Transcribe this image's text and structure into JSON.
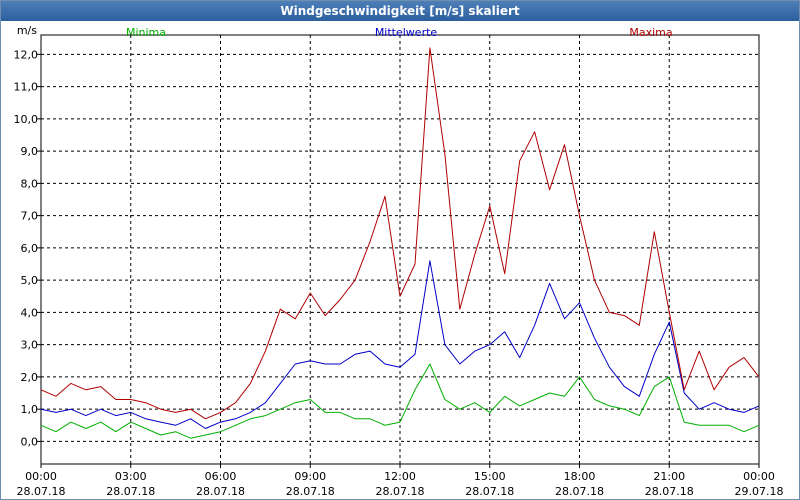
{
  "window": {
    "title": "Windgeschwindigkeit [m/s] skaliert"
  },
  "chart_data": {
    "type": "line",
    "title": "Windgeschwindigkeit [m/s] skaliert",
    "ylabel": "m/s",
    "xlabel": "",
    "ylim": [
      -0.7,
      12.6
    ],
    "xlim": [
      0,
      24
    ],
    "x_tick_times": [
      "00:00",
      "03:00",
      "06:00",
      "09:00",
      "12:00",
      "15:00",
      "18:00",
      "21:00",
      "00:00"
    ],
    "x_tick_dates": [
      "28.07.18",
      "28.07.18",
      "28.07.18",
      "28.07.18",
      "28.07.18",
      "28.07.18",
      "28.07.18",
      "28.07.18",
      "29.07.18"
    ],
    "y_ticks": [
      0,
      1,
      2,
      3,
      4,
      5,
      6,
      7,
      8,
      9,
      10,
      11,
      12
    ],
    "y_tick_labels": [
      "0,0",
      "1,0",
      "2,0",
      "3,0",
      "4,0",
      "5,0",
      "6,0",
      "7,0",
      "8,0",
      "9,0",
      "10,0",
      "11,0",
      "12,0"
    ],
    "grid": true,
    "legend": [
      "Minima",
      "Mittelwerte",
      "Maxima"
    ],
    "series": [
      {
        "name": "Minima",
        "color": "#00b000",
        "x": [
          0,
          0.5,
          1,
          1.5,
          2,
          2.5,
          3,
          3.5,
          4,
          4.5,
          5,
          5.5,
          6,
          6.5,
          7,
          7.5,
          8,
          8.5,
          9,
          9.5,
          10,
          10.5,
          11,
          11.5,
          12,
          12.5,
          13,
          13.5,
          14,
          14.5,
          15,
          15.5,
          16,
          16.5,
          17,
          17.5,
          18,
          18.5,
          19,
          19.5,
          20,
          20.5,
          21,
          21.5,
          22,
          22.5,
          23,
          23.5,
          24
        ],
        "values": [
          0.5,
          0.3,
          0.6,
          0.4,
          0.6,
          0.3,
          0.6,
          0.4,
          0.2,
          0.3,
          0.1,
          0.2,
          0.3,
          0.5,
          0.7,
          0.8,
          1.0,
          1.2,
          1.3,
          0.9,
          0.9,
          0.7,
          0.7,
          0.5,
          0.6,
          1.6,
          2.4,
          1.3,
          1.0,
          1.2,
          0.9,
          1.4,
          1.1,
          1.3,
          1.5,
          1.4,
          2.0,
          1.3,
          1.1,
          1.0,
          0.8,
          1.7,
          2.0,
          0.6,
          0.5,
          0.5,
          0.5,
          0.3,
          0.5
        ]
      },
      {
        "name": "Mittelwerte",
        "color": "#0000c8",
        "x": [
          0,
          0.5,
          1,
          1.5,
          2,
          2.5,
          3,
          3.5,
          4,
          4.5,
          5,
          5.5,
          6,
          6.5,
          7,
          7.5,
          8,
          8.5,
          9,
          9.5,
          10,
          10.5,
          11,
          11.5,
          12,
          12.5,
          13,
          13.5,
          14,
          14.5,
          15,
          15.5,
          16,
          16.5,
          17,
          17.5,
          18,
          18.5,
          19,
          19.5,
          20,
          20.5,
          21,
          21.5,
          22,
          22.5,
          23,
          23.5,
          24
        ],
        "values": [
          1.0,
          0.9,
          1.0,
          0.8,
          1.0,
          0.8,
          0.9,
          0.7,
          0.6,
          0.5,
          0.7,
          0.4,
          0.6,
          0.7,
          0.9,
          1.2,
          1.8,
          2.4,
          2.5,
          2.4,
          2.4,
          2.7,
          2.8,
          2.4,
          2.3,
          2.7,
          5.6,
          3.0,
          2.4,
          2.8,
          3.0,
          3.4,
          2.6,
          3.6,
          4.9,
          3.8,
          4.3,
          3.2,
          2.3,
          1.7,
          1.4,
          2.7,
          3.7,
          1.5,
          1.0,
          1.2,
          1.0,
          0.9,
          1.1
        ]
      },
      {
        "name": "Maxima",
        "color": "#b00000",
        "x": [
          0,
          0.5,
          1,
          1.5,
          2,
          2.5,
          3,
          3.5,
          4,
          4.5,
          5,
          5.5,
          6,
          6.5,
          7,
          7.5,
          8,
          8.5,
          9,
          9.5,
          10,
          10.5,
          11,
          11.5,
          12,
          12.5,
          13,
          13.5,
          14,
          14.5,
          15,
          15.5,
          16,
          16.5,
          17,
          17.5,
          18,
          18.5,
          19,
          19.5,
          20,
          20.5,
          21,
          21.5,
          22,
          22.5,
          23,
          23.5,
          24
        ],
        "values": [
          1.6,
          1.4,
          1.8,
          1.6,
          1.7,
          1.3,
          1.3,
          1.2,
          1.0,
          0.9,
          1.0,
          0.7,
          0.9,
          1.2,
          1.8,
          2.8,
          4.1,
          3.8,
          4.6,
          3.9,
          4.4,
          5.0,
          6.2,
          7.6,
          4.5,
          5.5,
          12.2,
          8.9,
          4.1,
          5.8,
          7.3,
          5.2,
          8.7,
          9.6,
          7.8,
          9.2,
          7.0,
          5.0,
          4.0,
          3.9,
          3.6,
          6.5,
          4.0,
          1.6,
          2.8,
          1.6,
          2.3,
          2.6,
          2.0
        ]
      }
    ]
  }
}
